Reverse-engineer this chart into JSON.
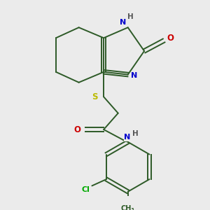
{
  "background_color": "#ebebeb",
  "bond_color": "#2d5a27",
  "atom_colors": {
    "N": "#0000cc",
    "O": "#cc0000",
    "S": "#bbbb00",
    "Cl": "#00aa00",
    "H": "#555555",
    "C": "#2d5a27"
  },
  "figsize": [
    3.0,
    3.0
  ],
  "dpi": 100
}
